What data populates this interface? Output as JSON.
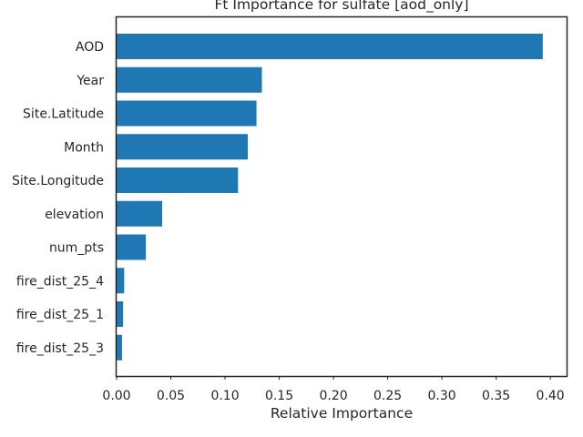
{
  "chart_data": {
    "type": "bar",
    "orientation": "horizontal",
    "title": "Ft Importance for sulfate [aod_only]",
    "xlabel": "Relative Importance",
    "ylabel": "",
    "categories": [
      "AOD",
      "Year",
      "Site.Latitude",
      "Month",
      "Site.Longitude",
      "elevation",
      "num_pts",
      "fire_dist_25_4",
      "fire_dist_25_1",
      "fire_dist_25_3"
    ],
    "values": [
      0.393,
      0.134,
      0.129,
      0.121,
      0.112,
      0.042,
      0.027,
      0.007,
      0.006,
      0.005
    ],
    "xlim": [
      0.0,
      0.415
    ],
    "xticks": [
      "0.00",
      "0.05",
      "0.10",
      "0.15",
      "0.20",
      "0.25",
      "0.30",
      "0.35",
      "0.40"
    ],
    "bar_color": "#1f77b4",
    "grid": false
  }
}
